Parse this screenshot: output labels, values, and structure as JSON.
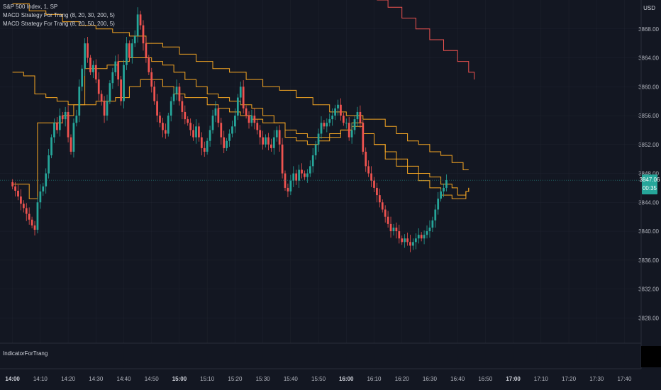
{
  "header": {
    "symbol": "S&P 500 Index, 1, SP",
    "indicator_1": "MACD Strategy For Trang (8, 20, 30, 200, 5)",
    "indicator_2": "MACD Strategy For Trang (8, 20, 50, 200, 5)",
    "currency": "USD"
  },
  "lower_pane": {
    "label": "IndicatorForTrang"
  },
  "last_price": {
    "value": "3847.06",
    "countdown": "00:35",
    "color": "#26a69a"
  },
  "colors": {
    "up": "#26a69a",
    "down": "#ef5350",
    "line": "#f5a623",
    "upper_line": "#ef5350",
    "bg": "#131722",
    "grid": "#2a2e39"
  },
  "chart_data": {
    "type": "candlestick",
    "y_ticks": [
      "3868.00",
      "3864.00",
      "3860.00",
      "3856.00",
      "3852.00",
      "3848.00",
      "3844.00",
      "3840.00",
      "3836.00",
      "3832.00",
      "3828.00"
    ],
    "y_tick_values": [
      3868,
      3864,
      3860,
      3856,
      3852,
      3848,
      3844,
      3840,
      3836,
      3832,
      3828
    ],
    "x_ticks": [
      {
        "label": "14:00",
        "t": 0,
        "bold": true
      },
      {
        "label": "14:10",
        "t": 10
      },
      {
        "label": "14:20",
        "t": 20
      },
      {
        "label": "14:30",
        "t": 30
      },
      {
        "label": "14:40",
        "t": 40
      },
      {
        "label": "14:50",
        "t": 50
      },
      {
        "label": "15:00",
        "t": 60,
        "bold": true
      },
      {
        "label": "15:10",
        "t": 70
      },
      {
        "label": "15:20",
        "t": 80
      },
      {
        "label": "15:30",
        "t": 90
      },
      {
        "label": "15:40",
        "t": 100
      },
      {
        "label": "15:50",
        "t": 110
      },
      {
        "label": "16:00",
        "t": 120,
        "bold": true
      },
      {
        "label": "16:10",
        "t": 130
      },
      {
        "label": "16:20",
        "t": 140
      },
      {
        "label": "16:30",
        "t": 150
      },
      {
        "label": "16:40",
        "t": 160
      },
      {
        "label": "16:50",
        "t": 170
      },
      {
        "label": "17:00",
        "t": 180,
        "bold": true
      },
      {
        "label": "17:10",
        "t": 190
      },
      {
        "label": "17:20",
        "t": 200
      },
      {
        "label": "17:30",
        "t": 210
      },
      {
        "label": "17:40",
        "t": 220
      }
    ],
    "x_range": [
      -4.5,
      226
    ],
    "y_range": [
      3824.5,
      3872
    ],
    "closes": [
      3846.2,
      3845.6,
      3844.8,
      3843.8,
      3843.2,
      3842.4,
      3841.6,
      3840.8,
      3840.2,
      3844.0,
      3845.5,
      3846.2,
      3848.0,
      3850.5,
      3853.0,
      3855.0,
      3854.0,
      3856.0,
      3855.5,
      3856.5,
      3853.0,
      3851.0,
      3855.0,
      3856.0,
      3860.0,
      3862.5,
      3866.0,
      3864.0,
      3862.0,
      3863.0,
      3861.0,
      3859.0,
      3858.0,
      3856.0,
      3858.0,
      3860.5,
      3862.0,
      3863.5,
      3861.0,
      3858.0,
      3863.0,
      3866.0,
      3864.0,
      3866.0,
      3867.0,
      3870.0,
      3868.5,
      3866.0,
      3864.0,
      3862.0,
      3860.0,
      3858.0,
      3856.0,
      3855.0,
      3854.0,
      3853.5,
      3856.0,
      3858.0,
      3859.0,
      3860.0,
      3858.0,
      3856.5,
      3855.5,
      3855.0,
      3854.0,
      3853.0,
      3854.5,
      3853.0,
      3851.5,
      3851.0,
      3852.5,
      3854.0,
      3856.0,
      3857.0,
      3855.0,
      3853.0,
      3851.5,
      3852.5,
      3853.5,
      3854.5,
      3856.0,
      3858.5,
      3860.0,
      3857.0,
      3856.0,
      3855.0,
      3856.0,
      3855.0,
      3854.0,
      3853.0,
      3852.0,
      3853.0,
      3852.0,
      3851.5,
      3853.0,
      3854.0,
      3852.0,
      3848.0,
      3846.0,
      3845.5,
      3847.0,
      3848.0,
      3847.0,
      3848.5,
      3848.0,
      3847.5,
      3848.0,
      3849.0,
      3850.5,
      3852.0,
      3853.5,
      3855.0,
      3854.5,
      3855.0,
      3855.5,
      3856.0,
      3857.0,
      3857.5,
      3856.0,
      3855.0,
      3855.0,
      3853.0,
      3854.0,
      3855.5,
      3856.5,
      3855.0,
      3851.0,
      3849.0,
      3848.0,
      3847.0,
      3846.0,
      3845.0,
      3844.0,
      3843.0,
      3842.0,
      3841.0,
      3840.0,
      3840.5,
      3840.0,
      3839.0,
      3838.5,
      3839.0,
      3838.5,
      3838.0,
      3838.5,
      3839.0,
      3839.5,
      3839.0,
      3839.5,
      3840.0,
      3840.5,
      3841.5,
      3843.0,
      3844.5,
      3845.5,
      3846.0,
      3847.06
    ],
    "lines": {
      "lower_step": [
        [
          0,
          3846.5
        ],
        [
          3,
          3846.5
        ],
        [
          6,
          3844.5
        ],
        [
          9,
          3855.0
        ],
        [
          15,
          3855.0
        ],
        [
          18,
          3856.0
        ],
        [
          22,
          3857.5
        ],
        [
          26,
          3857.5
        ],
        [
          30,
          3858.0
        ],
        [
          37,
          3858.5
        ],
        [
          42,
          3860.0
        ],
        [
          46,
          3861.0
        ],
        [
          50,
          3861.0
        ],
        [
          54,
          3860.0
        ],
        [
          58,
          3859.0
        ],
        [
          62,
          3858.5
        ],
        [
          66,
          3858.5
        ],
        [
          70,
          3857.5
        ],
        [
          74,
          3857.0
        ],
        [
          78,
          3856.5
        ],
        [
          82,
          3856.0
        ],
        [
          86,
          3855.5
        ],
        [
          90,
          3855.0
        ],
        [
          94,
          3855.0
        ],
        [
          98,
          3853.0
        ],
        [
          102,
          3852.5
        ],
        [
          106,
          3852.0
        ],
        [
          110,
          3852.5
        ],
        [
          114,
          3853.0
        ],
        [
          118,
          3854.0
        ],
        [
          122,
          3855.0
        ],
        [
          126,
          3853.5
        ],
        [
          130,
          3852.0
        ],
        [
          134,
          3850.0
        ],
        [
          138,
          3849.0
        ],
        [
          142,
          3848.0
        ],
        [
          146,
          3847.0
        ],
        [
          150,
          3846.0
        ],
        [
          154,
          3845.0
        ],
        [
          158,
          3844.5
        ],
        [
          160,
          3844.5
        ],
        [
          163,
          3845.5
        ],
        [
          164,
          3846.0
        ]
      ],
      "mid": [
        [
          0,
          3862.0
        ],
        [
          4,
          3861.5
        ],
        [
          8,
          3859.0
        ],
        [
          12,
          3858.5
        ],
        [
          16,
          3858.0
        ],
        [
          20,
          3857.5
        ],
        [
          26,
          3862.5
        ],
        [
          30,
          3862.5
        ],
        [
          34,
          3863.0
        ],
        [
          38,
          3863.5
        ],
        [
          42,
          3864.0
        ],
        [
          46,
          3864.0
        ],
        [
          50,
          3863.5
        ],
        [
          54,
          3863.0
        ],
        [
          58,
          3862.0
        ],
        [
          62,
          3861.0
        ],
        [
          66,
          3860.0
        ],
        [
          70,
          3859.0
        ],
        [
          74,
          3858.5
        ],
        [
          78,
          3858.0
        ],
        [
          82,
          3857.5
        ],
        [
          86,
          3857.0
        ],
        [
          90,
          3856.0
        ],
        [
          94,
          3855.0
        ],
        [
          98,
          3854.0
        ],
        [
          102,
          3853.5
        ],
        [
          106,
          3853.0
        ],
        [
          110,
          3853.0
        ],
        [
          114,
          3853.5
        ],
        [
          118,
          3854.0
        ],
        [
          122,
          3854.5
        ],
        [
          126,
          3853.5
        ],
        [
          130,
          3852.0
        ],
        [
          134,
          3851.0
        ],
        [
          138,
          3850.0
        ],
        [
          142,
          3849.0
        ],
        [
          146,
          3848.0
        ],
        [
          150,
          3847.5
        ],
        [
          154,
          3846.5
        ],
        [
          158,
          3846.0
        ],
        [
          160,
          3845.0
        ],
        [
          163,
          3845.5
        ],
        [
          164,
          3846.0
        ]
      ],
      "upper": [
        [
          0,
          3871.5
        ],
        [
          6,
          3870.5
        ],
        [
          12,
          3870.0
        ],
        [
          18,
          3869.0
        ],
        [
          24,
          3868.5
        ],
        [
          30,
          3868.0
        ],
        [
          36,
          3867.5
        ],
        [
          42,
          3867.0
        ],
        [
          48,
          3866.0
        ],
        [
          54,
          3865.5
        ],
        [
          60,
          3864.5
        ],
        [
          66,
          3863.5
        ],
        [
          72,
          3862.5
        ],
        [
          78,
          3862.0
        ],
        [
          84,
          3861.0
        ],
        [
          90,
          3860.0
        ],
        [
          96,
          3859.5
        ],
        [
          102,
          3858.5
        ],
        [
          108,
          3857.5
        ],
        [
          114,
          3856.5
        ],
        [
          120,
          3856.0
        ],
        [
          126,
          3855.5
        ],
        [
          130,
          3855.5
        ],
        [
          134,
          3854.5
        ],
        [
          138,
          3853.5
        ],
        [
          142,
          3852.5
        ],
        [
          146,
          3852.0
        ],
        [
          150,
          3851.0
        ],
        [
          154,
          3850.5
        ],
        [
          158,
          3849.5
        ],
        [
          162,
          3848.5
        ],
        [
          164,
          3848.5
        ]
      ],
      "top_red": [
        [
          131,
          3872.0
        ],
        [
          135,
          3871.0
        ],
        [
          140,
          3869.5
        ],
        [
          145,
          3868.0
        ],
        [
          150,
          3866.5
        ],
        [
          155,
          3865.0
        ],
        [
          160,
          3863.5
        ],
        [
          164,
          3862.0
        ],
        [
          166,
          3861.0
        ]
      ]
    }
  }
}
